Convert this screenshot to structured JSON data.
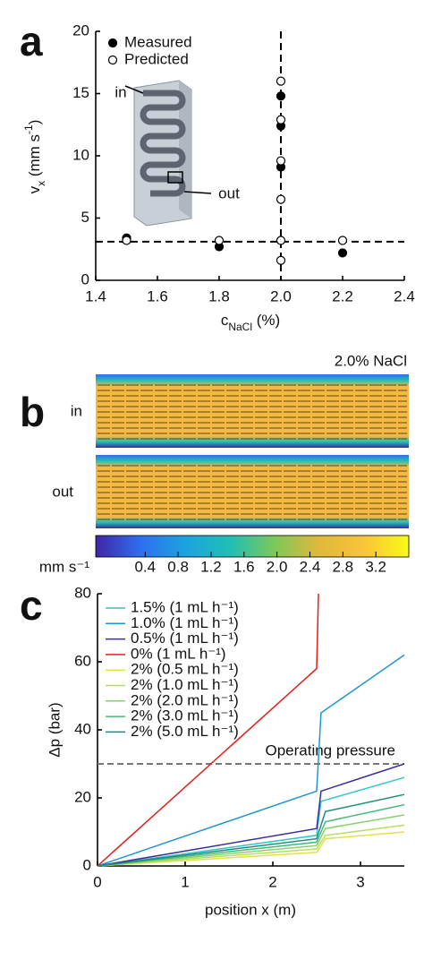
{
  "chart_data": [
    {
      "type": "scatter",
      "panel_label": "a",
      "xlabel": [
        {
          "text": "c"
        },
        {
          "text": "NaCl",
          "style": "sub"
        },
        {
          "text": " (%)"
        }
      ],
      "ylabel": [
        {
          "text": "v"
        },
        {
          "text": "x",
          "style": "sub"
        },
        {
          "text": " (mm s"
        },
        {
          "text": "-1",
          "style": "sup"
        },
        {
          "text": ")"
        }
      ],
      "xlim": [
        1.4,
        2.4
      ],
      "xticks": [
        1.4,
        1.6,
        1.8,
        {
          "value": 2,
          "label": "2.0"
        },
        2.2,
        2.4
      ],
      "ylim": [
        0,
        20
      ],
      "yticks": [
        0,
        5,
        10,
        15,
        20
      ],
      "series": [
        {
          "name": "Measured",
          "marker": "filled",
          "color": "#000000",
          "x": [
            1.5,
            1.8,
            2,
            2,
            2,
            2.2
          ],
          "values": [
            3.4,
            2.7,
            9.1,
            12.4,
            14.8,
            2.2
          ]
        },
        {
          "name": "Predicted",
          "marker": "open",
          "color": "#000000",
          "x": [
            1.5,
            1.8,
            2,
            2,
            2,
            2,
            2,
            2,
            2.2
          ],
          "values": [
            3.2,
            3.2,
            1.6,
            3.2,
            6.5,
            9.6,
            12.9,
            16.0,
            3.2
          ]
        }
      ],
      "reference_lines": {
        "y": 3.1,
        "x": 2
      },
      "inset_labels": [
        "in",
        "out"
      ]
    },
    {
      "type": "heatmap",
      "panel_label": "b",
      "title": "2.0% NaCl",
      "row_labels": [
        "in",
        "out"
      ],
      "colorbar": {
        "label": "mm s⁻¹",
        "lim": [
          -0.2,
          3.6
        ],
        "ticks": [
          0.4,
          0.8,
          1.2,
          1.6,
          {
            "value": 2,
            "label": "2.0"
          },
          2.4,
          2.8,
          3.2
        ],
        "colormap": [
          "#3e26a8",
          "#2f6ef0",
          "#1aa4e0",
          "#1fbfb5",
          "#7ec85a",
          "#e0b83a",
          "#f9c43a",
          "#f9fb14"
        ]
      }
    },
    {
      "type": "line",
      "panel_label": "c",
      "xlabel": "position x (m)",
      "ylabel": "Δp (bar)",
      "xlim": [
        0,
        3.5
      ],
      "xticks": [
        0,
        1,
        2,
        3
      ],
      "ylim": [
        0,
        80
      ],
      "yticks": [
        0,
        20,
        40,
        60,
        80
      ],
      "reference_line": {
        "y": 30,
        "label": "Operating pressure"
      },
      "series": [
        {
          "name": "1.5% (1 mL h⁻¹)",
          "color": "#35c3c8",
          "x": [
            0,
            2.5,
            2.55,
            3.5
          ],
          "values": [
            0,
            9,
            19,
            26
          ]
        },
        {
          "name": "1.0% (1 mL h⁻¹)",
          "color": "#1f96d2",
          "x": [
            0,
            2.5,
            2.55,
            3.5
          ],
          "values": [
            0,
            22,
            45,
            62
          ]
        },
        {
          "name": "0.5% (1 mL h⁻¹)",
          "color": "#3a2f9e",
          "x": [
            0,
            2.5,
            2.55,
            3.5
          ],
          "values": [
            0,
            11,
            22,
            30
          ]
        },
        {
          "name": "0% (1 mL h⁻¹)",
          "color": "#e0201b",
          "x": [
            0,
            2.5,
            2.52
          ],
          "values": [
            0,
            58,
            80
          ]
        },
        {
          "name": "2% (0.5 mL h⁻¹)",
          "color": "#e3e04c",
          "x": [
            0,
            2.5,
            2.6,
            3.5
          ],
          "values": [
            0,
            4,
            8,
            10
          ]
        },
        {
          "name": "2% (1.0 mL h⁻¹)",
          "color": "#b9df58",
          "x": [
            0,
            2.5,
            2.6,
            3.5
          ],
          "values": [
            0,
            5,
            9,
            12
          ]
        },
        {
          "name": "2% (2.0 mL h⁻¹)",
          "color": "#86d16a",
          "x": [
            0,
            2.5,
            2.6,
            3.5
          ],
          "values": [
            0,
            6,
            11,
            15
          ]
        },
        {
          "name": "2% (3.0 mL h⁻¹)",
          "color": "#47b97c",
          "x": [
            0,
            2.5,
            2.6,
            3.5
          ],
          "values": [
            0,
            7,
            13,
            18
          ]
        },
        {
          "name": "2% (5.0 mL h⁻¹)",
          "color": "#1e8c7c",
          "x": [
            0,
            2.5,
            2.6,
            3.5
          ],
          "values": [
            0,
            8,
            16,
            21
          ]
        }
      ]
    }
  ]
}
